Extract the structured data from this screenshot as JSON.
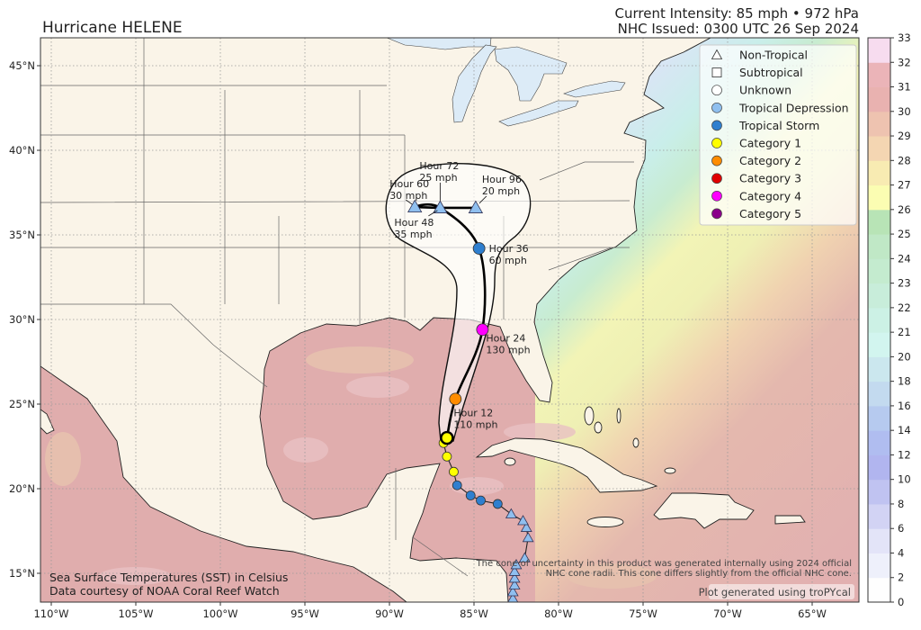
{
  "header": {
    "title": "Hurricane HELENE",
    "intensity": "Current Intensity: 85 mph • 972 hPa",
    "issued": "NHC Issued: 0300 UTC 26 Sep 2024"
  },
  "axes": {
    "lon_ticks": [
      {
        "value": -110,
        "label": "110°W"
      },
      {
        "value": -105,
        "label": "105°W"
      },
      {
        "value": -100,
        "label": "100°W"
      },
      {
        "value": -95,
        "label": "95°W"
      },
      {
        "value": -90,
        "label": "90°W"
      },
      {
        "value": -85,
        "label": "85°W"
      },
      {
        "value": -80,
        "label": "80°W"
      },
      {
        "value": -75,
        "label": "75°W"
      },
      {
        "value": -70,
        "label": "70°W"
      },
      {
        "value": -65,
        "label": "65°W"
      }
    ],
    "lat_ticks": [
      {
        "value": 15,
        "label": "15°N"
      },
      {
        "value": 20,
        "label": "20°N"
      },
      {
        "value": 25,
        "label": "25°N"
      },
      {
        "value": 30,
        "label": "30°N"
      },
      {
        "value": 35,
        "label": "35°N"
      },
      {
        "value": 40,
        "label": "40°N"
      },
      {
        "value": 45,
        "label": "45°N"
      }
    ],
    "extent": {
      "lon": [
        -110.6,
        -62.2
      ],
      "lat": [
        13.3,
        46.6
      ]
    }
  },
  "legend": [
    {
      "label": "Non-Tropical",
      "shape": "triangle",
      "color": "#ffffff"
    },
    {
      "label": "Subtropical",
      "shape": "square",
      "color": "#ffffff"
    },
    {
      "label": "Unknown",
      "shape": "circle",
      "color": "#ffffff"
    },
    {
      "label": "Tropical Depression",
      "shape": "circle",
      "color": "#8fbfef"
    },
    {
      "label": "Tropical Storm",
      "shape": "circle",
      "color": "#2f7fcf"
    },
    {
      "label": "Category 1",
      "shape": "circle",
      "color": "#ffff00"
    },
    {
      "label": "Category 2",
      "shape": "circle",
      "color": "#ff8c00"
    },
    {
      "label": "Category 3",
      "shape": "circle",
      "color": "#e00000"
    },
    {
      "label": "Category 4",
      "shape": "circle",
      "color": "#ff00ff"
    },
    {
      "label": "Category 5",
      "shape": "circle",
      "color": "#8b008b"
    }
  ],
  "colorbar": {
    "ticks": [
      "0",
      "2",
      "4",
      "6",
      "8",
      "10",
      "12",
      "14",
      "16",
      "18",
      "20",
      "21",
      "22",
      "23",
      "24",
      "25",
      "26",
      "27",
      "28",
      "29",
      "30",
      "31",
      "32",
      "33"
    ],
    "colors": [
      "#fefefe",
      "#eef0fb",
      "#e3e4f8",
      "#d2d3f4",
      "#c0c3f1",
      "#b1b5ef",
      "#b0bdf0",
      "#b6caef",
      "#c3daef",
      "#cbe7ee",
      "#d2f5ef",
      "#ccf1e5",
      "#c8edda",
      "#c4ebcf",
      "#c0e8c6",
      "#b8e4b6",
      "#fbfdb2",
      "#f8ebb2",
      "#f4d6b2",
      "#eec3b0",
      "#e9b2b0",
      "#ebb4b8",
      "#f7dcef"
    ]
  },
  "track": {
    "past": [
      {
        "lat": 13.5,
        "lon": -82.7,
        "type": "non-tropical"
      },
      {
        "lat": 13.9,
        "lon": -82.7,
        "type": "non-tropical"
      },
      {
        "lat": 14.3,
        "lon": -82.6,
        "type": "non-tropical"
      },
      {
        "lat": 14.7,
        "lon": -82.6,
        "type": "non-tropical"
      },
      {
        "lat": 15.1,
        "lon": -82.6,
        "type": "non-tropical"
      },
      {
        "lat": 15.5,
        "lon": -82.5,
        "type": "non-tropical"
      },
      {
        "lat": 15.9,
        "lon": -82.0,
        "type": "non-tropical"
      },
      {
        "lat": 17.1,
        "lon": -81.8,
        "type": "non-tropical"
      },
      {
        "lat": 17.7,
        "lon": -81.9,
        "type": "non-tropical"
      },
      {
        "lat": 18.1,
        "lon": -82.1,
        "type": "non-tropical"
      },
      {
        "lat": 18.5,
        "lon": -82.8,
        "type": "non-tropical"
      },
      {
        "lat": 19.1,
        "lon": -83.6,
        "type": "tropical-storm"
      },
      {
        "lat": 19.3,
        "lon": -84.6,
        "type": "tropical-storm"
      },
      {
        "lat": 19.6,
        "lon": -85.2,
        "type": "tropical-storm"
      },
      {
        "lat": 20.2,
        "lon": -86.0,
        "type": "tropical-storm"
      },
      {
        "lat": 21.0,
        "lon": -86.2,
        "type": "category-1"
      },
      {
        "lat": 21.9,
        "lon": -86.6,
        "type": "category-1"
      },
      {
        "lat": 22.7,
        "lon": -86.8,
        "type": "category-1"
      }
    ],
    "current": {
      "lat": 23.0,
      "lon": -86.6,
      "type": "category-1"
    },
    "forecast": [
      {
        "hour": "Hour 12",
        "wind": "110 mph",
        "lat": 25.3,
        "lon": -86.1,
        "type": "category-2"
      },
      {
        "hour": "Hour 24",
        "wind": "130 mph",
        "lat": 29.4,
        "lon": -84.5,
        "type": "category-4"
      },
      {
        "hour": "Hour 36",
        "wind": "60 mph",
        "lat": 34.2,
        "lon": -84.7,
        "type": "tropical-storm"
      },
      {
        "hour": "Hour 48",
        "wind": "35 mph",
        "lat": 36.6,
        "lon": -87.0,
        "type": "non-tropical"
      },
      {
        "hour": "Hour 60",
        "wind": "30 mph",
        "lat": 36.65,
        "lon": -88.5,
        "type": "non-tropical"
      },
      {
        "hour": "Hour 72",
        "wind": "25 mph",
        "lat": 36.6,
        "lon": -87.0,
        "type": "non-tropical"
      },
      {
        "hour": "Hour 96",
        "wind": "20 mph",
        "lat": 36.6,
        "lon": -84.9,
        "type": "non-tropical"
      }
    ]
  },
  "type_colors": {
    "non-tropical": "#8fbfef",
    "tropical-storm": "#2f7fcf",
    "category-1": "#ffff00",
    "category-2": "#ff8c00",
    "category-4": "#ff00ff"
  },
  "notes": {
    "sst_line1": "Sea Surface Temperatures (SST) in Celsius",
    "sst_line2": "Data courtesy of NOAA Coral Reef Watch",
    "disclaimer_line1": "The cone of uncertainty in this product was generated internally using 2024 official",
    "disclaimer_line2": "NHC cone radii. This cone differs slightly from the official NHC cone.",
    "credit": "Plot generated using troPYcal"
  }
}
